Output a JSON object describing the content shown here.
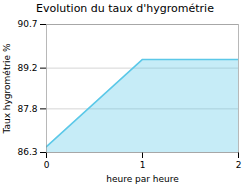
{
  "chart_data": {
    "type": "area",
    "title": "Evolution du taux d'hygrométrie",
    "xlabel": "heure par heure",
    "ylabel": "Taux hygrométrie %",
    "x": [
      0,
      1,
      2
    ],
    "values": [
      86.5,
      89.5,
      89.5
    ],
    "color": "#5bc8e8",
    "xlim": [
      0,
      2
    ],
    "ylim": [
      86.3,
      90.7
    ],
    "xticks": [
      0,
      1,
      2
    ],
    "yticks": [
      86.3,
      87.8,
      89.2,
      90.7
    ],
    "grid": true
  }
}
